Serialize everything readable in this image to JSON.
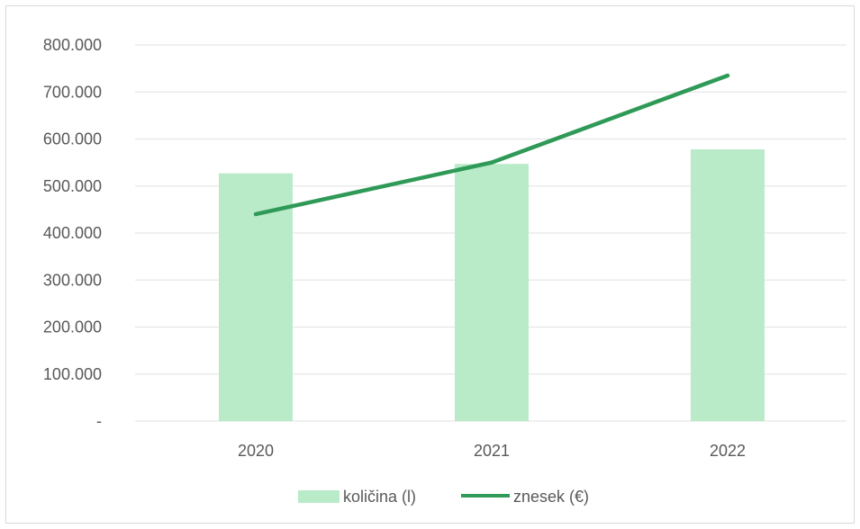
{
  "chart_data": {
    "type": "bar",
    "categories": [
      "2020",
      "2021",
      "2022"
    ],
    "series": [
      {
        "name": "količina (l)",
        "kind": "bar",
        "color": "#b9ebc9",
        "values": [
          527000,
          547000,
          578000
        ]
      },
      {
        "name": "znesek (€)",
        "kind": "line",
        "color": "#2f9a57",
        "values": [
          440000,
          550000,
          735000
        ]
      }
    ],
    "y_ticks": [
      "-",
      "100.000",
      "200.000",
      "300.000",
      "400.000",
      "500.000",
      "600.000",
      "700.000",
      "800.000"
    ],
    "ylim": [
      0,
      800000
    ],
    "grid": true,
    "legend_position": "bottom",
    "gridline_color": "#e6e6e6"
  }
}
